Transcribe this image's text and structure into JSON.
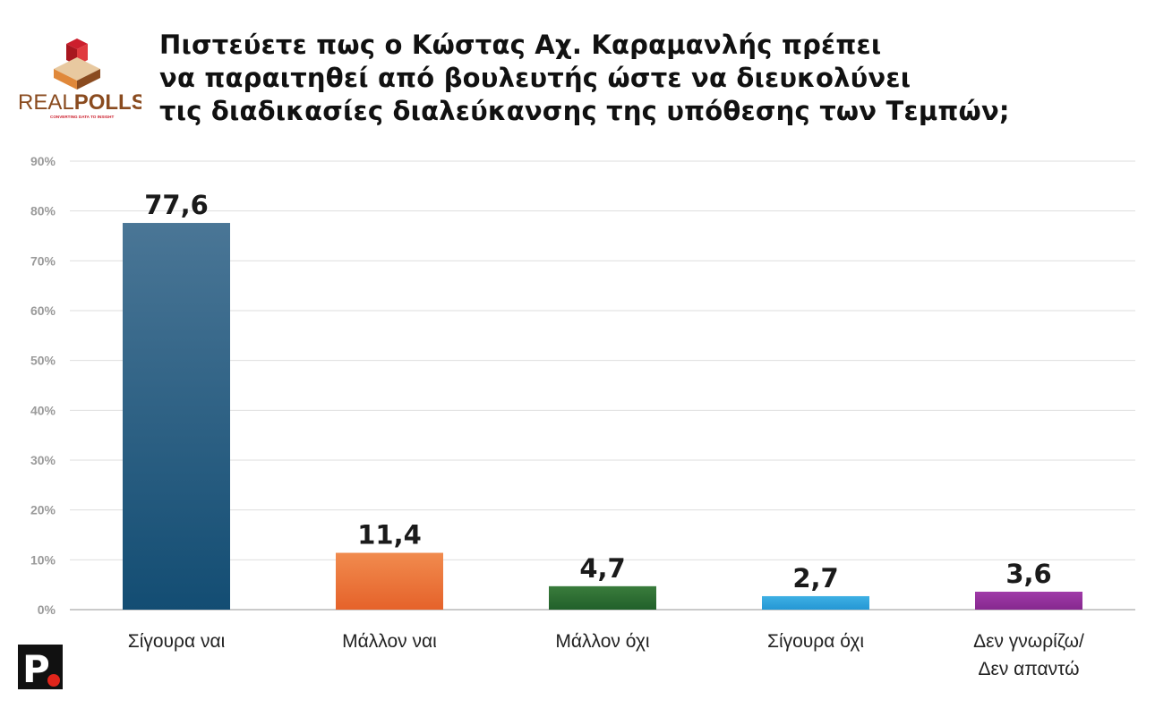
{
  "logo": {
    "word_light": "REAL",
    "word_bold": "POLLS",
    "tagline": "CONVERTING DATA TO INSIGHT",
    "colors": {
      "red": "#cc1f2d",
      "brown": "#8a4b1f",
      "orange": "#e0883a",
      "beige": "#e8c9a0"
    }
  },
  "title_lines": [
    "Πιστεύετε πως ο Κώστας Αχ. Καραμανλής πρέπει",
    "να παραιτηθεί από βουλευτής ώστε να διευκολύνει",
    "τις διαδικασίες διαλεύκανσης της υπόθεσης των Τεμπών;"
  ],
  "badge": {
    "letter": "P",
    "bg": "#111111",
    "dot": "#e1251b"
  },
  "chart_data": {
    "type": "bar",
    "title": "Πιστεύετε πως ο Κώστας Αχ. Καραμανλής πρέπει να παραιτηθεί από βουλευτής ώστε να διευκολύνει τις διαδικασίες διαλεύκανσης της υπόθεσης των Τεμπών;",
    "categories": [
      "Σίγουρα ναι",
      "Μάλλον ναι",
      "Μάλλον όχι",
      "Σίγουρα όχι",
      "Δεν γνωρίζω/ Δεν απαντώ"
    ],
    "category_lines": [
      [
        "Σίγουρα ναι"
      ],
      [
        "Μάλλον ναι"
      ],
      [
        "Μάλλον όχι"
      ],
      [
        "Σίγουρα όχι"
      ],
      [
        "Δεν γνωρίζω/",
        "Δεν απαντώ"
      ]
    ],
    "values": [
      77.6,
      11.4,
      4.7,
      2.7,
      3.6
    ],
    "value_labels": [
      "77,6",
      "11,4",
      "4,7",
      "2,7",
      "3,6"
    ],
    "colors": [
      [
        "#4a7696",
        "#134d73"
      ],
      [
        "#f18b4e",
        "#e5622a"
      ],
      [
        "#3a7c3c",
        "#21602a"
      ],
      [
        "#3eb0e4",
        "#2597d4"
      ],
      [
        "#a03aa8",
        "#86288f"
      ]
    ],
    "ylim": [
      0,
      90
    ],
    "yticks": [
      0,
      10,
      20,
      30,
      40,
      50,
      60,
      70,
      80,
      90
    ],
    "ytick_labels": [
      "0%",
      "10%",
      "20%",
      "30%",
      "40%",
      "50%",
      "60%",
      "70%",
      "80%",
      "90%"
    ],
    "xlabel": "",
    "ylabel": "",
    "grid": true,
    "legend": "none"
  }
}
